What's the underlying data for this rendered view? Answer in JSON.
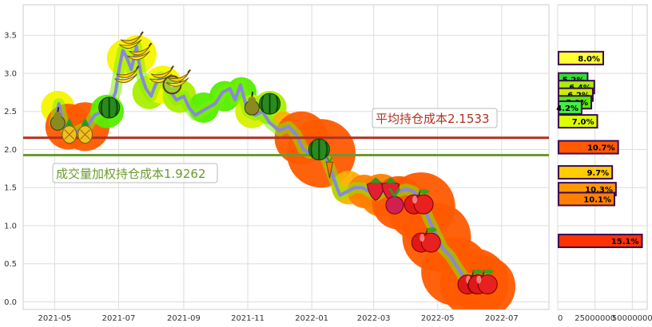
{
  "chart_data": [
    {
      "type": "line",
      "title": "",
      "xlabel": "",
      "ylabel": "",
      "x_ticks": [
        "2021-05",
        "2021-07",
        "2021-09",
        "2021-11",
        "2022-01",
        "2022-03",
        "2022-05",
        "2022-07"
      ],
      "xlim": [
        "2021-04-01",
        "2022-08-15"
      ],
      "y_ticks": [
        0.0,
        0.5,
        1.0,
        1.5,
        2.0,
        2.5,
        3.0,
        3.5
      ],
      "ylim": [
        -0.1,
        3.9
      ],
      "grid": true,
      "series": [
        {
          "color": "#8888dd",
          "points": [
            [
              "2021-05-01",
              2.35
            ],
            [
              "2021-05-05",
              2.6
            ],
            [
              "2021-05-10",
              2.3
            ],
            [
              "2021-05-17",
              2.2
            ],
            [
              "2021-05-24",
              2.25
            ],
            [
              "2021-06-01",
              2.3
            ],
            [
              "2021-06-08",
              2.45
            ],
            [
              "2021-06-15",
              2.5
            ],
            [
              "2021-06-22",
              2.55
            ],
            [
              "2021-06-28",
              2.75
            ],
            [
              "2021-07-02",
              3.1
            ],
            [
              "2021-07-05",
              3.3
            ],
            [
              "2021-07-09",
              3.2
            ],
            [
              "2021-07-13",
              3.05
            ],
            [
              "2021-07-18",
              3.35
            ],
            [
              "2021-07-22",
              3.0
            ],
            [
              "2021-07-27",
              2.8
            ],
            [
              "2021-08-01",
              2.7
            ],
            [
              "2021-08-05",
              2.85
            ],
            [
              "2021-08-10",
              2.95
            ],
            [
              "2021-08-15",
              2.85
            ],
            [
              "2021-08-20",
              2.75
            ],
            [
              "2021-08-25",
              2.65
            ],
            [
              "2021-09-01",
              2.7
            ],
            [
              "2021-09-06",
              2.55
            ],
            [
              "2021-09-12",
              2.45
            ],
            [
              "2021-09-18",
              2.5
            ],
            [
              "2021-09-24",
              2.55
            ],
            [
              "2021-10-01",
              2.6
            ],
            [
              "2021-10-08",
              2.75
            ],
            [
              "2021-10-15",
              2.8
            ],
            [
              "2021-10-20",
              2.65
            ],
            [
              "2021-10-25",
              2.85
            ],
            [
              "2021-11-01",
              2.5
            ],
            [
              "2021-11-08",
              2.45
            ],
            [
              "2021-11-15",
              2.5
            ],
            [
              "2021-11-22",
              2.35
            ],
            [
              "2021-12-01",
              2.25
            ],
            [
              "2021-12-10",
              2.3
            ],
            [
              "2021-12-17",
              2.2
            ],
            [
              "2021-12-24",
              2.0
            ],
            [
              "2021-12-30",
              1.95
            ],
            [
              "2022-01-07",
              2.05
            ],
            [
              "2022-01-14",
              1.9
            ],
            [
              "2022-01-20",
              1.7
            ],
            [
              "2022-01-25",
              1.5
            ],
            [
              "2022-01-28",
              1.4
            ],
            [
              "2022-02-04",
              1.45
            ],
            [
              "2022-02-11",
              1.5
            ],
            [
              "2022-02-18",
              1.5
            ],
            [
              "2022-02-25",
              1.45
            ],
            [
              "2022-03-04",
              1.4
            ],
            [
              "2022-03-11",
              1.45
            ],
            [
              "2022-03-18",
              1.5
            ],
            [
              "2022-03-25",
              1.45
            ],
            [
              "2022-04-01",
              1.48
            ],
            [
              "2022-04-08",
              1.45
            ],
            [
              "2022-04-15",
              1.35
            ],
            [
              "2022-04-22",
              1.1
            ],
            [
              "2022-04-29",
              0.9
            ],
            [
              "2022-05-06",
              0.7
            ],
            [
              "2022-05-13",
              0.6
            ],
            [
              "2022-05-20",
              0.45
            ],
            [
              "2022-05-27",
              0.3
            ],
            [
              "2022-06-03",
              0.3
            ],
            [
              "2022-06-10",
              0.25
            ],
            [
              "2022-06-17",
              0.3
            ]
          ]
        }
      ],
      "reference_lines": [
        {
          "label": "平均持仓成本2.1533",
          "value": 2.1533,
          "color": "#b03020"
        },
        {
          "label": "成交量加权持仓成本1.9262",
          "value": 1.9262,
          "color": "#6a9a30"
        }
      ],
      "fruits": [
        {
          "icon": "pear-icon",
          "x": "2021-05-04",
          "y": 2.4
        },
        {
          "icon": "pineapple-icon",
          "x": "2021-05-15",
          "y": 2.25
        },
        {
          "icon": "pineapple-icon",
          "x": "2021-05-30",
          "y": 2.25
        },
        {
          "icon": "watermelon-icon",
          "x": "2021-06-22",
          "y": 2.55
        },
        {
          "icon": "banana-icon",
          "x": "2021-07-12",
          "y": 3.4
        },
        {
          "icon": "banana-icon",
          "x": "2021-07-20",
          "y": 3.25
        },
        {
          "icon": "banana-icon",
          "x": "2021-07-08",
          "y": 2.95
        },
        {
          "icon": "banana-icon",
          "x": "2021-08-10",
          "y": 2.95
        },
        {
          "icon": "kiwi-icon",
          "x": "2021-08-21",
          "y": 2.85
        },
        {
          "icon": "banana-icon",
          "x": "2021-08-26",
          "y": 2.9
        },
        {
          "icon": "pear-icon",
          "x": "2021-11-05",
          "y": 2.6
        },
        {
          "icon": "watermelon-icon",
          "x": "2021-11-22",
          "y": 2.6
        },
        {
          "icon": "watermelon-icon",
          "x": "2022-01-08",
          "y": 2.0
        },
        {
          "icon": "carrot-icon",
          "x": "2022-01-18",
          "y": 1.75
        },
        {
          "icon": "strawberry-icon",
          "x": "2022-03-03",
          "y": 1.5
        },
        {
          "icon": "strawberry-icon",
          "x": "2022-03-17",
          "y": 1.5
        },
        {
          "icon": "radish-icon",
          "x": "2022-03-21",
          "y": 1.3
        },
        {
          "icon": "apple-icon",
          "x": "2022-04-13",
          "y": 1.3
        },
        {
          "icon": "apple-icon",
          "x": "2022-04-20",
          "y": 0.8
        },
        {
          "icon": "apple-icon",
          "x": "2022-06-03",
          "y": 0.25
        },
        {
          "icon": "apple-icon",
          "x": "2022-06-13",
          "y": 0.25
        }
      ],
      "halos": [
        {
          "x": "2021-05-04",
          "y": 2.55,
          "r": 0.22,
          "color": "#f5f500"
        },
        {
          "x": "2021-05-14",
          "y": 2.3,
          "r": 0.3,
          "color": "#ff5a00"
        },
        {
          "x": "2021-05-30",
          "y": 2.3,
          "r": 0.32,
          "color": "#ff5a00"
        },
        {
          "x": "2021-06-20",
          "y": 2.5,
          "r": 0.22,
          "color": "#55ee00"
        },
        {
          "x": "2021-07-08",
          "y": 3.2,
          "r": 0.25,
          "color": "#f5f500"
        },
        {
          "x": "2021-07-19",
          "y": 3.25,
          "r": 0.25,
          "color": "#f5f500"
        },
        {
          "x": "2021-07-30",
          "y": 2.75,
          "r": 0.22,
          "color": "#aaee00"
        },
        {
          "x": "2021-08-12",
          "y": 2.85,
          "r": 0.25,
          "color": "#f5f500"
        },
        {
          "x": "2021-08-28",
          "y": 2.7,
          "r": 0.22,
          "color": "#aaee00"
        },
        {
          "x": "2021-09-20",
          "y": 2.55,
          "r": 0.2,
          "color": "#55ee00"
        },
        {
          "x": "2021-10-10",
          "y": 2.7,
          "r": 0.2,
          "color": "#55ee00"
        },
        {
          "x": "2021-10-26",
          "y": 2.75,
          "r": 0.2,
          "color": "#55ee00"
        },
        {
          "x": "2021-11-05",
          "y": 2.5,
          "r": 0.22,
          "color": "#d8f000"
        },
        {
          "x": "2021-11-22",
          "y": 2.55,
          "r": 0.22,
          "color": "#aaee00"
        },
        {
          "x": "2021-12-05",
          "y": 2.35,
          "r": 0.15,
          "color": "#ffb000"
        },
        {
          "x": "2021-12-22",
          "y": 2.15,
          "r": 0.35,
          "color": "#ff5a00"
        },
        {
          "x": "2022-01-10",
          "y": 1.95,
          "r": 0.45,
          "color": "#ff5a00"
        },
        {
          "x": "2022-02-05",
          "y": 1.5,
          "r": 0.22,
          "color": "#ffb000"
        },
        {
          "x": "2022-02-20",
          "y": 1.45,
          "r": 0.22,
          "color": "#ff8000"
        },
        {
          "x": "2022-03-08",
          "y": 1.4,
          "r": 0.28,
          "color": "#ff8000"
        },
        {
          "x": "2022-03-25",
          "y": 1.3,
          "r": 0.35,
          "color": "#ff5a00"
        },
        {
          "x": "2022-04-15",
          "y": 1.25,
          "r": 0.45,
          "color": "#ff5a00"
        },
        {
          "x": "2022-04-30",
          "y": 0.85,
          "r": 0.45,
          "color": "#ff5a00"
        },
        {
          "x": "2022-05-18",
          "y": 0.4,
          "r": 0.45,
          "color": "#ff5a00"
        },
        {
          "x": "2022-06-05",
          "y": 0.25,
          "r": 0.45,
          "color": "#ff5a00"
        },
        {
          "x": "2022-06-15",
          "y": 0.2,
          "r": 0.4,
          "color": "#ff5a00"
        }
      ]
    },
    {
      "type": "bar",
      "orientation": "horizontal",
      "x_ticks": [
        "0",
        "25000000",
        "50000000"
      ],
      "xlim": [
        0,
        60000000
      ],
      "ylim": [
        -0.1,
        3.9
      ],
      "bars": [
        {
          "label": "8.0%",
          "y": 3.2,
          "value": 30000000,
          "color": "#ffff33"
        },
        {
          "label": "5.2%",
          "y": 2.92,
          "value": 19500000,
          "color": "#33dd33"
        },
        {
          "label": "6.4%",
          "y": 2.82,
          "value": 24000000,
          "color": "#aaee00"
        },
        {
          "label": "6.2%",
          "y": 2.72,
          "value": 23000000,
          "color": "#ccee00"
        },
        {
          "label": "5.9%",
          "y": 2.62,
          "value": 22000000,
          "color": "#55ee00"
        },
        {
          "label": "4.2%",
          "y": 2.55,
          "value": 15500000,
          "color": "#44ee44"
        },
        {
          "label": "7.0%",
          "y": 2.37,
          "value": 26000000,
          "color": "#ddff00"
        },
        {
          "label": "10.7%",
          "y": 2.03,
          "value": 40000000,
          "color": "#ff5a00"
        },
        {
          "label": "9.7%",
          "y": 1.7,
          "value": 36000000,
          "color": "#ffcc00"
        },
        {
          "label": "10.3%",
          "y": 1.48,
          "value": 38500000,
          "color": "#ff9900"
        },
        {
          "label": "10.1%",
          "y": 1.35,
          "value": 37500000,
          "color": "#ff8000"
        },
        {
          "label": "15.1%",
          "y": 0.8,
          "value": 56000000,
          "color": "#ff3300"
        }
      ]
    }
  ]
}
